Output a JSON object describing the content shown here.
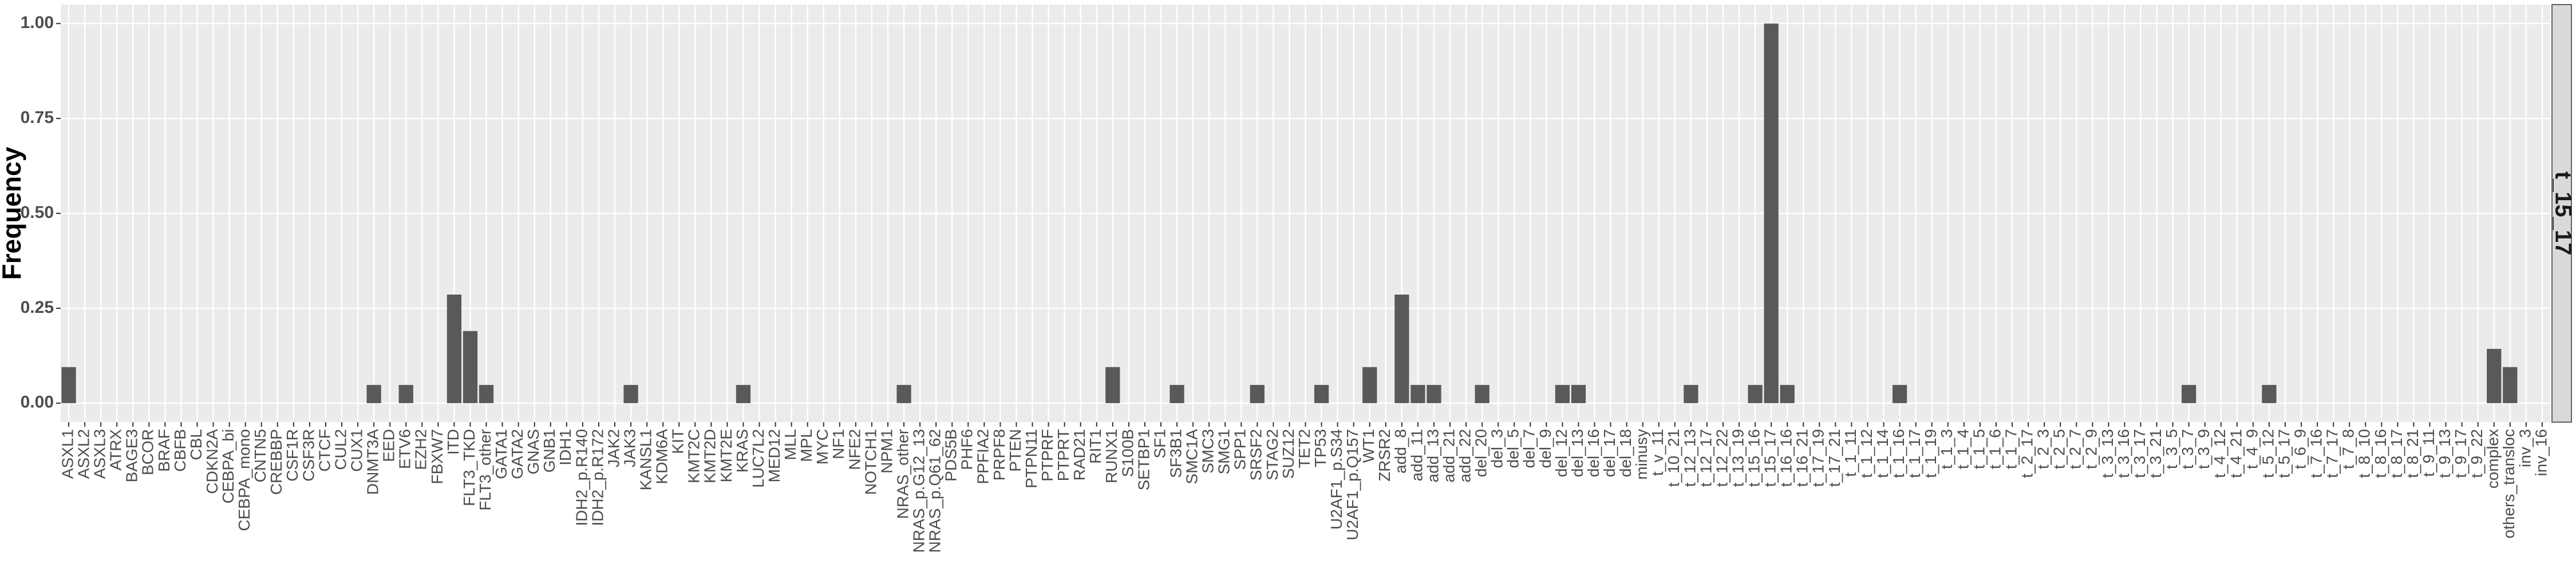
{
  "chart_data": {
    "type": "bar",
    "ylabel": "Frequency",
    "facet": "t_15_17",
    "color": "#595959",
    "grid": true,
    "ylim": [
      -0.05,
      1.05
    ],
    "yticks": [
      {
        "value": 0,
        "label": "0.00"
      },
      {
        "value": 0.25,
        "label": "0.25"
      },
      {
        "value": 0.5,
        "label": "0.50"
      },
      {
        "value": 0.75,
        "label": "0.75"
      },
      {
        "value": 1,
        "label": "1.00"
      }
    ],
    "categories": [
      "ASXL1",
      "ASXL2",
      "ASXL3",
      "ATRX",
      "BAGE3",
      "BCOR",
      "BRAF",
      "CBFB",
      "CBL",
      "CDKN2A",
      "CEBPA_bi",
      "CEBPA_mono",
      "CNTN5",
      "CREBBP",
      "CSF1R",
      "CSF3R",
      "CTCF",
      "CUL2",
      "CUX1",
      "DNMT3A",
      "EED",
      "ETV6",
      "EZH2",
      "FBXW7",
      "ITD",
      "FLT3_TKD",
      "FLT3_other",
      "GATA1",
      "GATA2",
      "GNAS",
      "GNB1",
      "IDH1",
      "IDH2_p.R140",
      "IDH2_p.R172",
      "JAK2",
      "JAK3",
      "KANSL1",
      "KDM6A",
      "KIT",
      "KMT2C",
      "KMT2D",
      "KMT2E",
      "KRAS",
      "LUC7L2",
      "MED12",
      "MLL",
      "MPL",
      "MYC",
      "NF1",
      "NFE2",
      "NOTCH1",
      "NPM1",
      "NRAS_other",
      "NRAS_p.G12_13",
      "NRAS_p.Q61_62",
      "PDS5B",
      "PHF6",
      "PPFIA2",
      "PRPF8",
      "PTEN",
      "PTPN11",
      "PTPRF",
      "PTPRT",
      "RAD21",
      "RIT1",
      "RUNX1",
      "S100B",
      "SETBP1",
      "SF1",
      "SF3B1",
      "SMC1A",
      "SMC3",
      "SMG1",
      "SPP1",
      "SRSF2",
      "STAG2",
      "SUZ12",
      "TET2",
      "TP53",
      "U2AF1_p.S34",
      "U2AF1_p.Q157",
      "WT1",
      "ZRSR2",
      "add_8",
      "add_11",
      "add_13",
      "add_21",
      "add_22",
      "del_20",
      "del_3",
      "del_5",
      "del_7",
      "del_9",
      "del_12",
      "del_13",
      "del_16",
      "del_17",
      "del_18",
      "minusy",
      "t_v_11",
      "t_10_21",
      "t_12_13",
      "t_12_17",
      "t_12_22",
      "t_13_19",
      "t_15_16",
      "t_15_17",
      "t_16_16",
      "t_16_21",
      "t_17_19",
      "t_17_21",
      "t_1_11",
      "t_1_12",
      "t_1_14",
      "t_1_16",
      "t_1_17",
      "t_1_19",
      "t_1_3",
      "t_1_4",
      "t_1_5",
      "t_1_6",
      "t_1_7",
      "t_2_17",
      "t_2_3",
      "t_2_5",
      "t_2_7",
      "t_2_9",
      "t_3_13",
      "t_3_16",
      "t_3_17",
      "t_3_21",
      "t_3_5",
      "t_3_7",
      "t_3_9",
      "t_4_12",
      "t_4_21",
      "t_4_9",
      "t_5_12",
      "t_5_17",
      "t_6_9",
      "t_7_16",
      "t_7_17",
      "t_7_8",
      "t_8_10",
      "t_8_16",
      "t_8_17",
      "t_8_21",
      "t_9_11",
      "t_9_13",
      "t_9_17",
      "t_9_22",
      "complex",
      "others_transloc",
      "inv_3",
      "inv_16"
    ],
    "values": [
      0.095,
      0,
      0,
      0,
      0,
      0,
      0,
      0,
      0,
      0,
      0,
      0,
      0,
      0,
      0,
      0,
      0,
      0,
      0,
      0.048,
      0,
      0.048,
      0,
      0,
      0.286,
      0.19,
      0.048,
      0,
      0,
      0,
      0,
      0,
      0,
      0,
      0,
      0.048,
      0,
      0,
      0,
      0,
      0,
      0,
      0.048,
      0,
      0,
      0,
      0,
      0,
      0,
      0,
      0,
      0,
      0.048,
      0,
      0,
      0,
      0,
      0,
      0,
      0,
      0,
      0,
      0,
      0,
      0,
      0.095,
      0,
      0,
      0,
      0.048,
      0,
      0,
      0,
      0,
      0.048,
      0,
      0,
      0,
      0.048,
      0,
      0,
      0.095,
      0,
      0.286,
      0.048,
      0.048,
      0,
      0,
      0.048,
      0,
      0,
      0,
      0,
      0.048,
      0.048,
      0,
      0,
      0,
      0,
      0,
      0,
      0.048,
      0,
      0,
      0,
      0.048,
      1,
      0.048,
      0,
      0,
      0,
      0,
      0,
      0,
      0.048,
      0,
      0,
      0,
      0,
      0,
      0,
      0,
      0,
      0,
      0,
      0,
      0,
      0,
      0,
      0,
      0,
      0,
      0.048,
      0,
      0,
      0,
      0,
      0.048,
      0,
      0,
      0,
      0,
      0,
      0,
      0,
      0,
      0,
      0,
      0,
      0,
      0,
      0.143,
      0.095,
      0,
      0
    ]
  }
}
